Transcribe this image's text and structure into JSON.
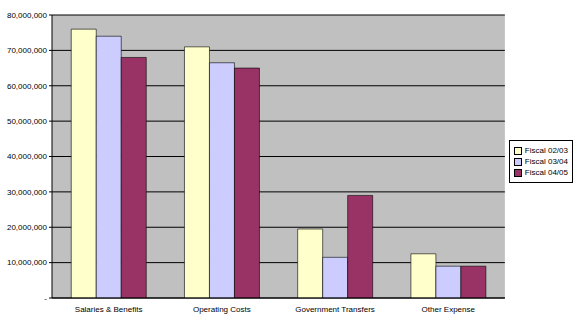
{
  "chart_data": {
    "type": "bar",
    "categories": [
      "Salaries & Benefits",
      "Operating Costs",
      "Government Transfers",
      "Other Expense"
    ],
    "series": [
      {
        "name": "Fiscal 02/03",
        "color": "#FFFFCC",
        "values": [
          76000000,
          71000000,
          19500000,
          12500000
        ]
      },
      {
        "name": "Fiscal 03/04",
        "color": "#CCCCFF",
        "values": [
          74000000,
          66500000,
          11500000,
          9000000
        ]
      },
      {
        "name": "Fiscal 04/05",
        "color": "#993366",
        "values": [
          68000000,
          65000000,
          29000000,
          9000000
        ]
      }
    ],
    "ylim": [
      0,
      80000000
    ],
    "yticks": [
      {
        "value": 0,
        "label": "-"
      },
      {
        "value": 10000000,
        "label": "10,000,000"
      },
      {
        "value": 20000000,
        "label": "20,000,000"
      },
      {
        "value": 30000000,
        "label": "30,000,000"
      },
      {
        "value": 40000000,
        "label": "40,000,000"
      },
      {
        "value": 50000000,
        "label": "50,000,000"
      },
      {
        "value": 60000000,
        "label": "60,000,000"
      },
      {
        "value": 70000000,
        "label": "70,000,000"
      },
      {
        "value": 80000000,
        "label": "80,000,000"
      }
    ],
    "grid": true,
    "legend": "right"
  }
}
